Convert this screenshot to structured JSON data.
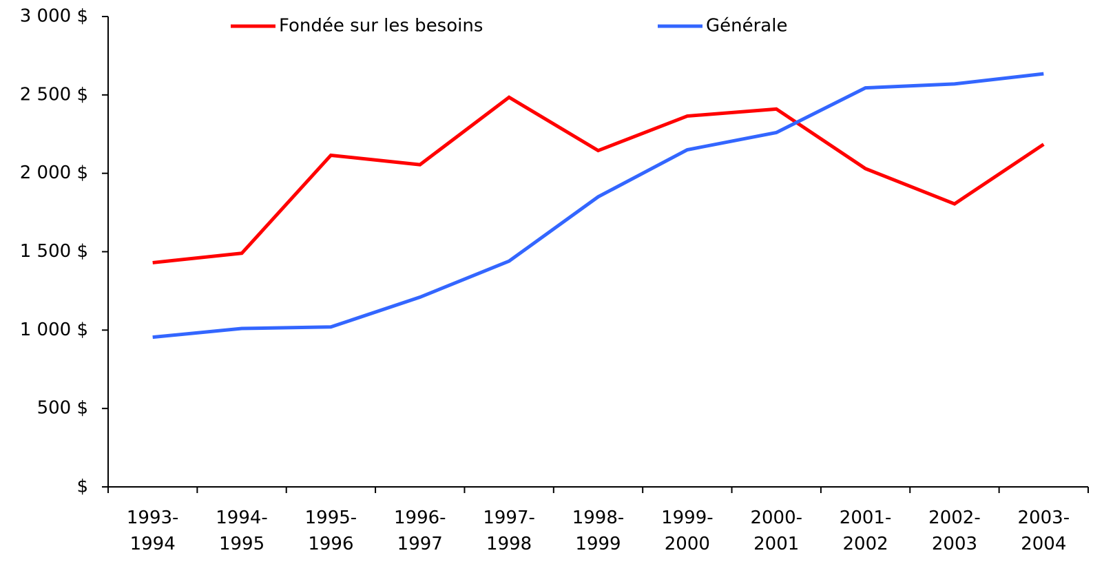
{
  "chart_data": {
    "type": "line",
    "categories": [
      "1993-\n1994",
      "1994-\n1995",
      "1995-\n1996",
      "1996-\n1997",
      "1997-\n1998",
      "1998-\n1999",
      "1999-\n2000",
      "2000-\n2001",
      "2001-\n2002",
      "2002-\n2003",
      "2003-\n2004"
    ],
    "series": [
      {
        "name": "Fondée sur les besoins",
        "color": "#ff0000",
        "values": [
          1430,
          1490,
          2115,
          2055,
          2485,
          2145,
          2365,
          2410,
          2030,
          1805,
          2185
        ]
      },
      {
        "name": "Générale",
        "color": "#3366ff",
        "values": [
          955,
          1010,
          1020,
          1210,
          1440,
          1850,
          2150,
          2260,
          2545,
          2570,
          2635
        ]
      }
    ],
    "ylim": [
      0,
      3000
    ],
    "yticks": [
      {
        "value": 0,
        "label": "$"
      },
      {
        "value": 500,
        "label": "500 $"
      },
      {
        "value": 1000,
        "label": "1 000 $"
      },
      {
        "value": 1500,
        "label": "1 500 $"
      },
      {
        "value": 2000,
        "label": "2 000 $"
      },
      {
        "value": 2500,
        "label": "2 500 $"
      },
      {
        "value": 3000,
        "label": "3 000 $"
      }
    ],
    "legend": "top",
    "grid": false
  }
}
